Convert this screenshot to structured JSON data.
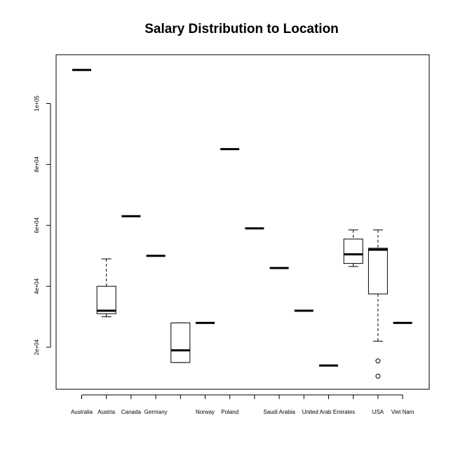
{
  "chart_data": {
    "type": "box",
    "title": "Salary Distribution to Location",
    "xlabel": "",
    "ylabel": "",
    "ylim": [
      5000,
      115000
    ],
    "yticks": [
      20000,
      40000,
      60000,
      80000,
      100000
    ],
    "ytick_labels": [
      "2e+04",
      "4e+04",
      "6e+04",
      "8e+04",
      "1e+05"
    ],
    "categories": [
      "Australia",
      "Austria",
      "Canada",
      "Germany",
      "",
      "Norway",
      "Poland",
      "",
      "Saudi Arabia",
      "",
      "United Arab Emirates",
      "",
      "USA",
      "Viet Nam"
    ],
    "boxes": [
      {
        "category": "Australia",
        "min": 111000,
        "q1": 111000,
        "median": 111000,
        "q3": 111000,
        "max": 111000,
        "outliers": []
      },
      {
        "category": "Austria",
        "min": 30000,
        "q1": 31000,
        "median": 32000,
        "q3": 40000,
        "max": 49000,
        "outliers": []
      },
      {
        "category": "Canada",
        "min": 63000,
        "q1": 63000,
        "median": 63000,
        "q3": 63000,
        "max": 63000,
        "outliers": []
      },
      {
        "category": "Germany",
        "min": 50000,
        "q1": 50000,
        "median": 50000,
        "q3": 50000,
        "max": 50000,
        "outliers": []
      },
      {
        "category": "",
        "min": 15000,
        "q1": 15000,
        "median": 19000,
        "q3": 28000,
        "max": 28000,
        "outliers": []
      },
      {
        "category": "Norway",
        "min": 28000,
        "q1": 28000,
        "median": 28000,
        "q3": 28000,
        "max": 28000,
        "outliers": []
      },
      {
        "category": "Poland",
        "min": 85000,
        "q1": 85000,
        "median": 85000,
        "q3": 85000,
        "max": 85000,
        "outliers": []
      },
      {
        "category": "",
        "min": 59000,
        "q1": 59000,
        "median": 59000,
        "q3": 59000,
        "max": 59000,
        "outliers": []
      },
      {
        "category": "Saudi Arabia",
        "min": 46000,
        "q1": 46000,
        "median": 46000,
        "q3": 46000,
        "max": 46000,
        "outliers": []
      },
      {
        "category": "",
        "min": 32000,
        "q1": 32000,
        "median": 32000,
        "q3": 32000,
        "max": 32000,
        "outliers": []
      },
      {
        "category": "United Arab Emirates",
        "min": 14000,
        "q1": 14000,
        "median": 14000,
        "q3": 14000,
        "max": 14000,
        "outliers": []
      },
      {
        "category": "",
        "min": 46500,
        "q1": 47500,
        "median": 50500,
        "q3": 55500,
        "max": 58500,
        "outliers": []
      },
      {
        "category": "USA",
        "min": 22000,
        "q1": 37500,
        "median": 52000,
        "q3": 52500,
        "max": 58500,
        "outliers": [
          15500,
          10500
        ]
      },
      {
        "category": "Viet Nam",
        "min": 28000,
        "q1": 28000,
        "median": 28000,
        "q3": 28000,
        "max": 28000,
        "outliers": []
      }
    ],
    "grid": false,
    "legend": "none",
    "colors": {
      "stroke": "#000000",
      "background": "#ffffff"
    }
  }
}
